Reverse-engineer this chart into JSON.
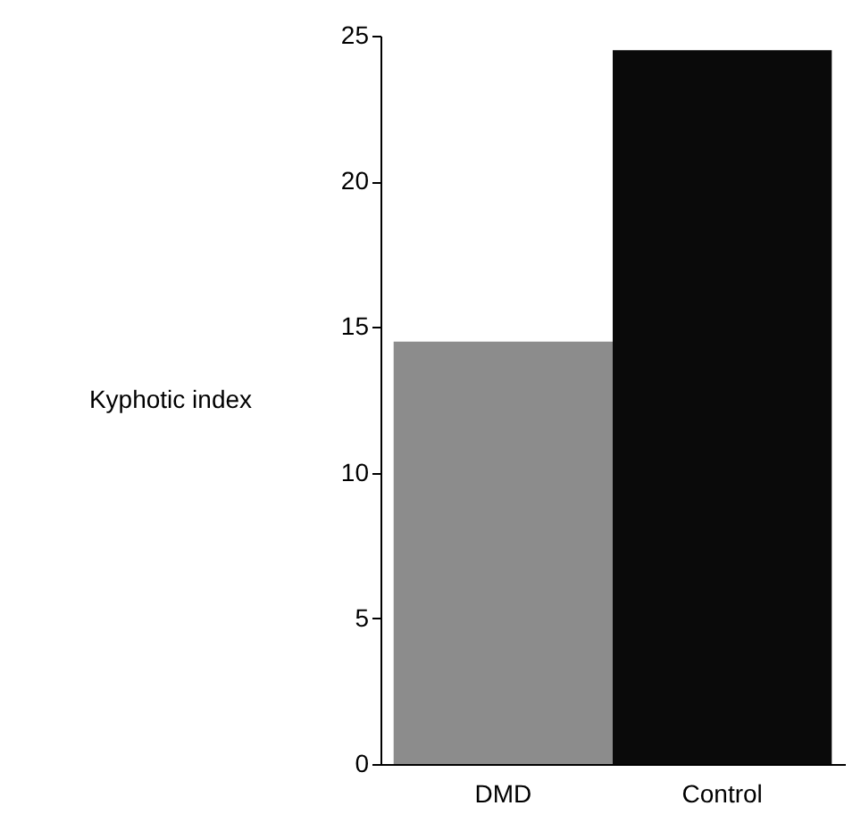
{
  "chart_data": {
    "type": "bar",
    "ylabel": "Kyphotic index",
    "categories": [
      "DMD",
      "Control"
    ],
    "values": [
      14.5,
      24.5
    ],
    "colors": [
      "#8c8c8c",
      "#0a0a0a"
    ],
    "ylim": [
      0,
      25
    ],
    "yticks": [
      0,
      5,
      10,
      15,
      20,
      25
    ],
    "grid": false
  }
}
